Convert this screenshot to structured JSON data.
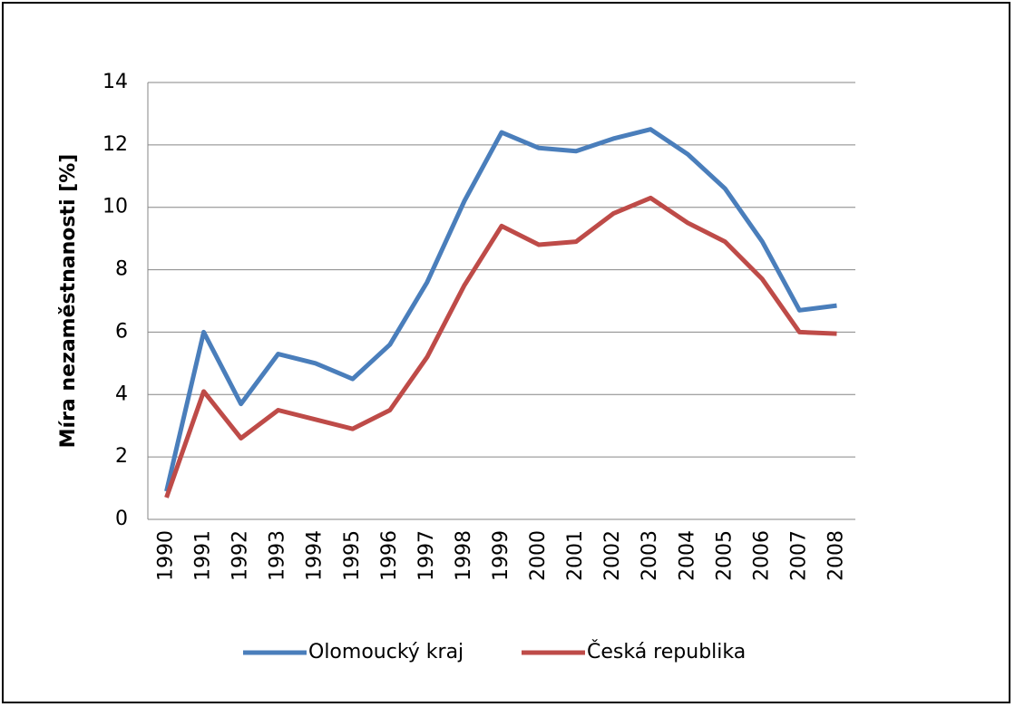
{
  "chart_data": {
    "type": "line",
    "ylabel": "Míra nezaměstnanosti [%]",
    "categories": [
      "1990",
      "1991",
      "1992",
      "1993",
      "1994",
      "1995",
      "1996",
      "1997",
      "1998",
      "1999",
      "2000",
      "2001",
      "2002",
      "2003",
      "2004",
      "2005",
      "2006",
      "2007",
      "2008"
    ],
    "series": [
      {
        "name": "Olomoucký kraj",
        "color": "#4a7ebb",
        "values": [
          0.9,
          6.0,
          3.7,
          5.3,
          5.0,
          4.5,
          5.6,
          7.6,
          10.2,
          12.4,
          11.9,
          11.8,
          12.2,
          12.5,
          11.7,
          10.6,
          8.9,
          6.7,
          6.85
        ]
      },
      {
        "name": "Česká republika",
        "color": "#be4b48",
        "values": [
          0.7,
          4.1,
          2.6,
          3.5,
          3.2,
          2.9,
          3.5,
          5.2,
          7.5,
          9.4,
          8.8,
          8.9,
          9.8,
          10.3,
          9.5,
          8.9,
          7.7,
          6.0,
          5.95
        ]
      }
    ],
    "ylim": [
      0,
      14
    ],
    "yticks": [
      0,
      2,
      4,
      6,
      8,
      10,
      12,
      14
    ],
    "grid": true,
    "legend": "bottom"
  }
}
